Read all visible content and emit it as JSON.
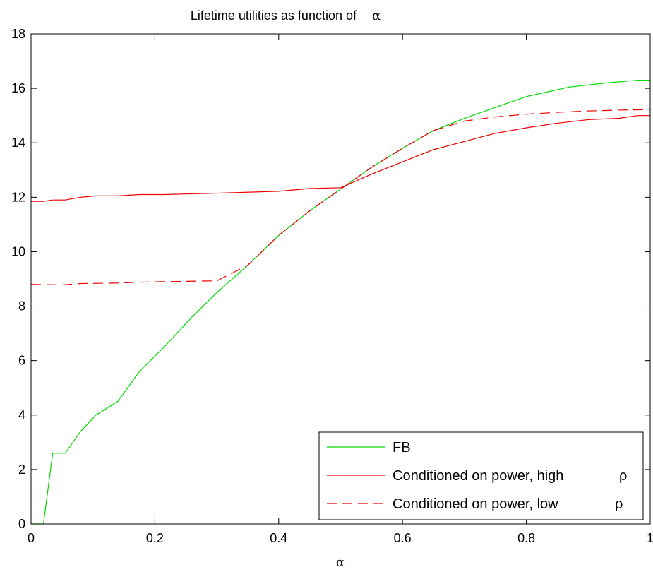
{
  "chart_data": {
    "type": "line",
    "title": "Lifetime utilities as function of",
    "title_symbol": "α",
    "xlabel": "α",
    "ylabel": "",
    "xlim": [
      0,
      1
    ],
    "ylim": [
      0,
      18
    ],
    "xticks": [
      0,
      0.2,
      0.4,
      0.6,
      0.8,
      1
    ],
    "xtick_labels": [
      "0",
      "0.2",
      "0.4",
      "0.6",
      "0.8",
      "1"
    ],
    "yticks": [
      0,
      2,
      4,
      6,
      8,
      10,
      12,
      14,
      16,
      18
    ],
    "ytick_labels": [
      "0",
      "2",
      "4",
      "6",
      "8",
      "10",
      "12",
      "14",
      "16",
      "18"
    ],
    "grid": false,
    "legend_position": "bottom-right",
    "series": [
      {
        "name": "FB",
        "color": "#00dd00",
        "dash": "solid",
        "points": [
          [
            0,
            0
          ],
          [
            0.02,
            0
          ],
          [
            0.035,
            2.6
          ],
          [
            0.055,
            2.6
          ],
          [
            0.08,
            3.4
          ],
          [
            0.105,
            4.0
          ],
          [
            0.14,
            4.5
          ],
          [
            0.175,
            5.6
          ],
          [
            0.215,
            6.5
          ],
          [
            0.26,
            7.6
          ],
          [
            0.3,
            8.5
          ],
          [
            0.35,
            9.5
          ],
          [
            0.4,
            10.6
          ],
          [
            0.45,
            11.5
          ],
          [
            0.5,
            12.3
          ],
          [
            0.55,
            13.1
          ],
          [
            0.6,
            13.8
          ],
          [
            0.65,
            14.45
          ],
          [
            0.7,
            14.9
          ],
          [
            0.75,
            15.3
          ],
          [
            0.8,
            15.7
          ],
          [
            0.87,
            16.05
          ],
          [
            0.93,
            16.2
          ],
          [
            0.98,
            16.3
          ],
          [
            1.0,
            16.3
          ]
        ]
      },
      {
        "name": "Conditioned on power, high",
        "name_symbol": "ρ",
        "color": "#ee0000",
        "dash": "solid",
        "points": [
          [
            0,
            11.85
          ],
          [
            0.02,
            11.85
          ],
          [
            0.035,
            11.9
          ],
          [
            0.055,
            11.9
          ],
          [
            0.08,
            12.0
          ],
          [
            0.105,
            12.05
          ],
          [
            0.14,
            12.05
          ],
          [
            0.175,
            12.1
          ],
          [
            0.215,
            12.1
          ],
          [
            0.3,
            12.15
          ],
          [
            0.4,
            12.22
          ],
          [
            0.45,
            12.32
          ],
          [
            0.5,
            12.35
          ],
          [
            0.55,
            12.85
          ],
          [
            0.6,
            13.3
          ],
          [
            0.65,
            13.75
          ],
          [
            0.7,
            14.05
          ],
          [
            0.75,
            14.35
          ],
          [
            0.8,
            14.55
          ],
          [
            0.85,
            14.72
          ],
          [
            0.9,
            14.85
          ],
          [
            0.95,
            14.9
          ],
          [
            0.98,
            15.0
          ],
          [
            1.0,
            15.0
          ]
        ]
      },
      {
        "name": "Conditioned on power, low",
        "name_symbol": "ρ",
        "color": "#ee0000",
        "dash": "dashed",
        "points": [
          [
            0,
            8.8
          ],
          [
            0.05,
            8.78
          ],
          [
            0.08,
            8.83
          ],
          [
            0.14,
            8.85
          ],
          [
            0.175,
            8.88
          ],
          [
            0.215,
            8.9
          ],
          [
            0.3,
            8.93
          ],
          [
            0.35,
            9.5
          ],
          [
            0.4,
            10.6
          ],
          [
            0.45,
            11.5
          ],
          [
            0.5,
            12.3
          ],
          [
            0.55,
            13.1
          ],
          [
            0.6,
            13.8
          ],
          [
            0.65,
            14.45
          ],
          [
            0.7,
            14.8
          ],
          [
            0.75,
            14.95
          ],
          [
            0.8,
            15.05
          ],
          [
            0.85,
            15.12
          ],
          [
            0.9,
            15.17
          ],
          [
            0.95,
            15.2
          ],
          [
            1.0,
            15.22
          ]
        ]
      }
    ]
  }
}
